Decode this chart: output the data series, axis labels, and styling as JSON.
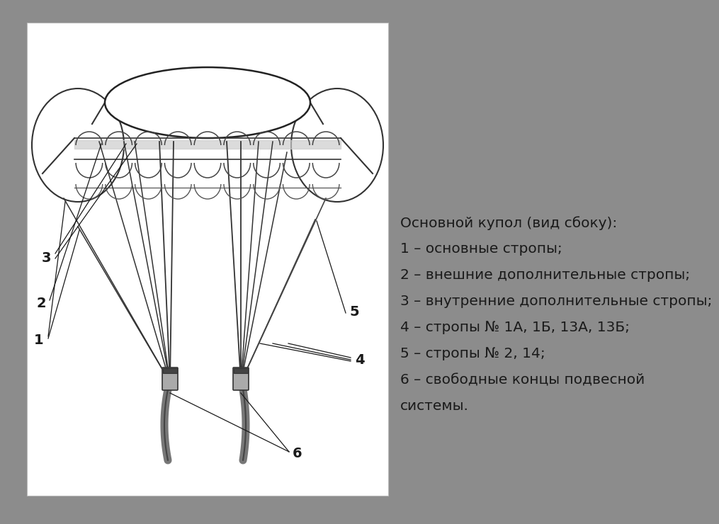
{
  "bg_color": "#8c8c8c",
  "panel_bg": "#ffffff",
  "text_color": "#1a1a1a",
  "title_line": "Основной купол (вид сбоку):",
  "legend_lines": [
    "1 – основные стропы;",
    "2 – внешние дополнительные стропы;",
    "3 – внутренние дополнительные стропы;",
    "4 – стропы № 1А, 1Б, 13А, 13Б;",
    "5 – стропы № 2, 14;",
    "6 – свободные концы подвесной",
    "системы."
  ],
  "font_size": 14.5
}
